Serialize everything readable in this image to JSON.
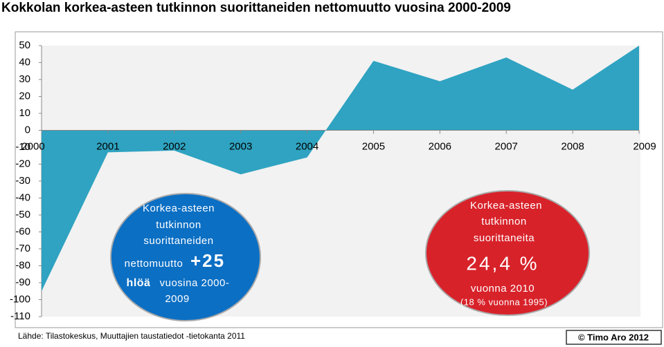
{
  "chart_data": {
    "type": "area",
    "title": "Kokkolan korkea-asteen tutkinnon suorittaneiden nettomuutto vuosina  2000-2009",
    "categories": [
      "2000",
      "2001",
      "2002",
      "2003",
      "2004",
      "2005",
      "2006",
      "2007",
      "2008",
      "2009"
    ],
    "values": [
      -95,
      -13,
      -12,
      -26,
      -16,
      41,
      29,
      43,
      24,
      50
    ],
    "color": "#2fa3c1",
    "ylim": [
      -110,
      50
    ],
    "yticks": [
      50,
      40,
      30,
      20,
      10,
      0,
      -10,
      -20,
      -30,
      -40,
      -50,
      -60,
      -70,
      -80,
      -90,
      -100,
      -110
    ],
    "source": "Lähde: Tilastokeskus, Muuttajien taustatiedot -tietokanta 2011",
    "copyright": "© Timo Aro 2012",
    "annotations": {
      "left": [
        "Korkea-asteen",
        "tutkinnon",
        "suorittaneiden",
        "nettomuutto",
        "+25",
        "hlöä",
        "vuosina 2000-",
        "2009"
      ],
      "right": [
        "Korkea-asteen",
        "tutkinnon",
        "suorittaneita",
        "24,4 %",
        "vuonna 2010",
        "(18 % vuonna 1995)"
      ]
    }
  }
}
